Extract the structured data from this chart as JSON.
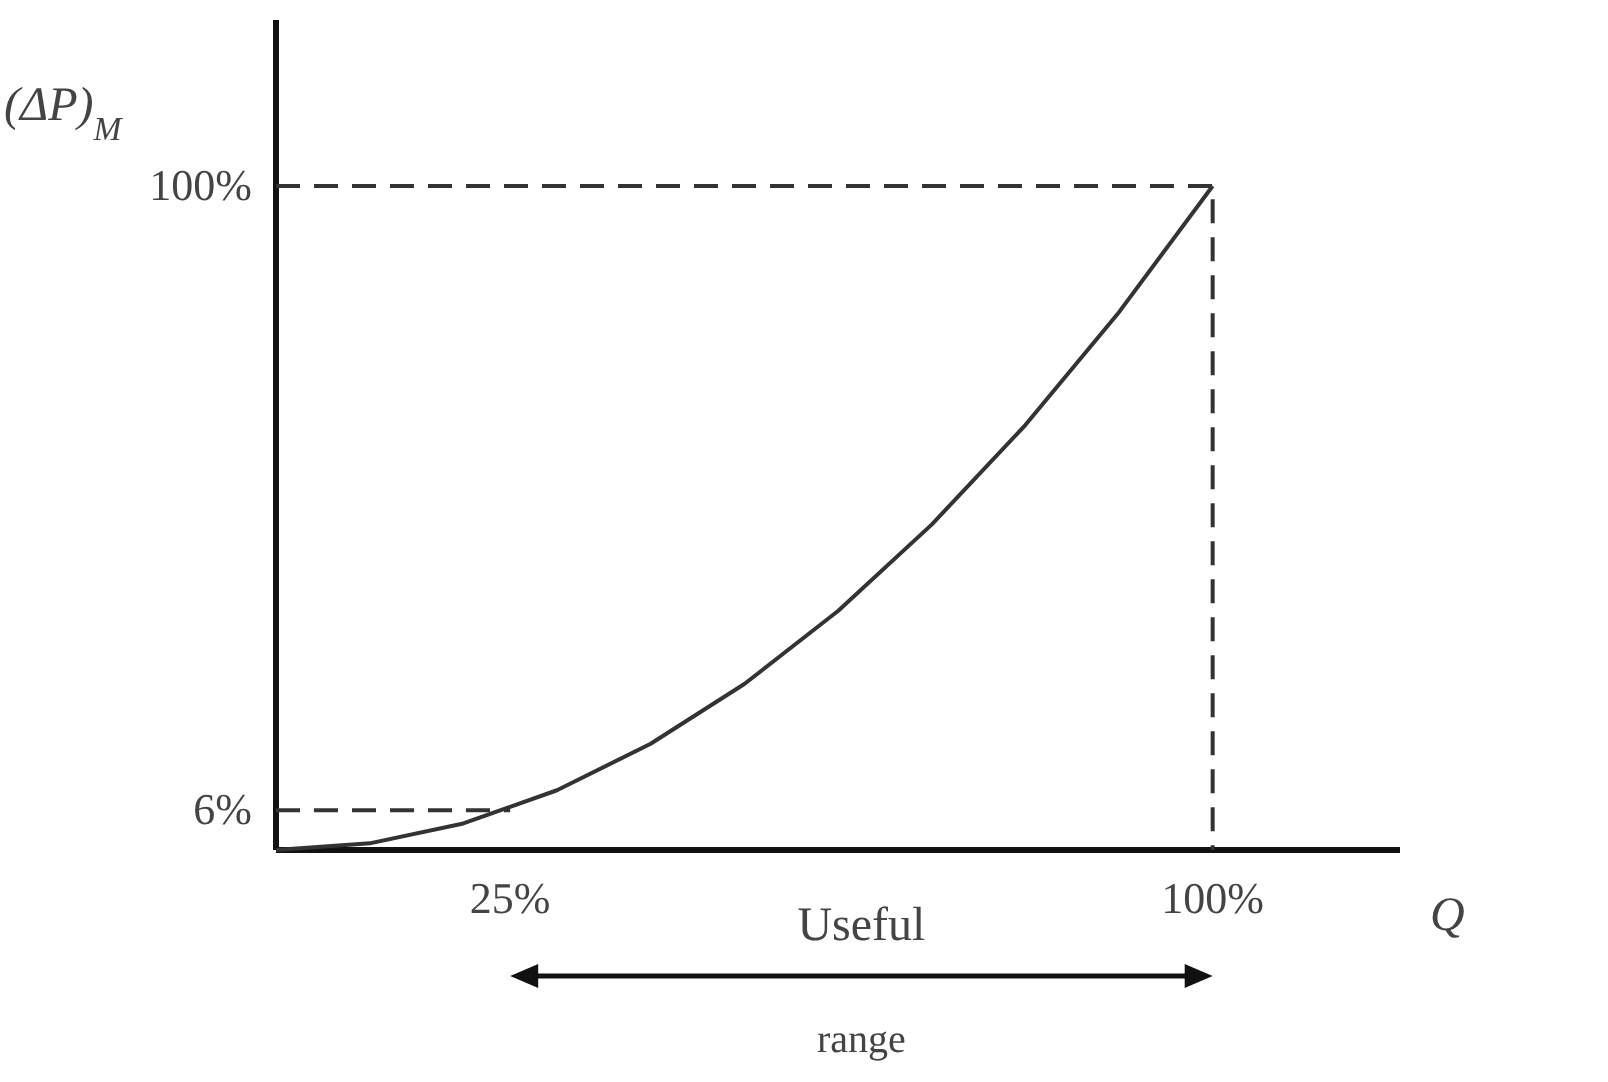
{
  "chart_data": {
    "type": "line",
    "xlabel": "Q",
    "ylabel": "(ΔP)$_{M}$",
    "xlim": [
      0,
      120
    ],
    "ylim": [
      0,
      125
    ],
    "xticks": [
      {
        "value": 25,
        "label": "25%"
      },
      {
        "value": 100,
        "label": "100%"
      }
    ],
    "yticks": [
      {
        "value": 6,
        "label": "6%"
      },
      {
        "value": 100,
        "label": "100%"
      }
    ],
    "series": [
      {
        "color": "#333333",
        "x": [
          0,
          10,
          20,
          30,
          40,
          50,
          60,
          70,
          80,
          90,
          100
        ],
        "values": [
          0,
          1,
          4,
          9,
          16,
          25,
          36,
          49,
          64,
          81,
          100
        ]
      },
      {
        "color": "#333333",
        "line_style": "dashed",
        "x": [
          0,
          100,
          100
        ],
        "values": [
          100,
          100,
          0
        ]
      },
      {
        "color": "#333333",
        "line_style": "dashed",
        "x": [
          0,
          25
        ],
        "values": [
          6,
          6
        ]
      }
    ],
    "annotations": [
      "Useful range"
    ]
  }
}
